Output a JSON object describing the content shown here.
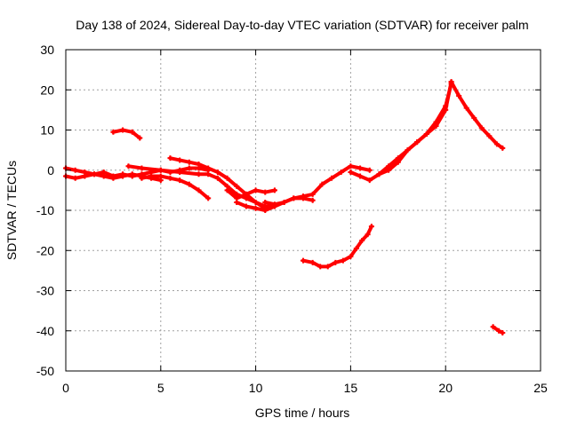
{
  "chart_data": {
    "type": "scatter",
    "title": "Day 138 of 2024, Sidereal Day-to-day VTEC variation (SDTVAR) for receiver palm",
    "xlabel": "GPS time / hours",
    "ylabel": "SDTVAR / TECUs",
    "xlim": [
      0,
      25
    ],
    "ylim": [
      -50,
      30
    ],
    "xticks": [
      0,
      5,
      10,
      15,
      20,
      25
    ],
    "yticks": [
      -50,
      -40,
      -30,
      -20,
      -10,
      0,
      10,
      20,
      30
    ],
    "grid": true,
    "series_color": "#ff0000",
    "series": [
      {
        "name": "arc-1",
        "x": [
          0,
          0.5,
          1,
          1.5,
          2,
          2.5,
          3,
          3.5,
          4,
          4.5,
          5,
          5.5,
          6,
          6.5,
          7,
          7.5
        ],
        "y": [
          -1.5,
          -2,
          -1.5,
          -1,
          -0.5,
          -1.5,
          -1,
          -1.5,
          -1,
          -0.5,
          0,
          -0.5,
          0,
          0.5,
          0.5,
          0
        ]
      },
      {
        "name": "arc-2",
        "x": [
          0,
          0.5,
          1,
          1.5,
          2,
          2.5,
          3,
          3.5,
          4,
          4.5,
          5
        ],
        "y": [
          0.5,
          0,
          -0.5,
          -1,
          -1.5,
          -2,
          -1.5,
          -1,
          -1.5,
          -2,
          -2.5
        ]
      },
      {
        "name": "arc-3",
        "x": [
          2.5,
          3,
          3.5,
          3.9
        ],
        "y": [
          9.5,
          10,
          9.5,
          8
        ]
      },
      {
        "name": "arc-4",
        "x": [
          3.3,
          4,
          5,
          6,
          7,
          7.5,
          8,
          8.5,
          9,
          9.5,
          10,
          10.5,
          11
        ],
        "y": [
          1,
          0.5,
          0,
          -0.5,
          -1,
          -1,
          -2,
          -4,
          -6,
          -7,
          -8,
          -9,
          -9
        ]
      },
      {
        "name": "arc-5",
        "x": [
          5.5,
          6,
          6.5,
          7,
          7.5,
          8,
          8.5,
          9,
          9.5,
          10,
          10.5
        ],
        "y": [
          3,
          2.5,
          2,
          1.5,
          0.5,
          -0.5,
          -2,
          -4,
          -6,
          -8,
          -9.5
        ]
      },
      {
        "name": "arc-6",
        "x": [
          4,
          4.5,
          5,
          5.5,
          6,
          6.5,
          7,
          7.5
        ],
        "y": [
          -2,
          -1.5,
          -1.5,
          -2,
          -2.5,
          -3.5,
          -5,
          -7
        ]
      },
      {
        "name": "arc-7",
        "x": [
          8.5,
          9,
          9.5,
          10,
          10.5,
          11
        ],
        "y": [
          -5,
          -7,
          -6,
          -5,
          -5.5,
          -5
        ]
      },
      {
        "name": "arc-8",
        "x": [
          9,
          9.5,
          10,
          10.5,
          11,
          11.5,
          12,
          12.5,
          13,
          13.5,
          14,
          14.5,
          15,
          15.5,
          16
        ],
        "y": [
          -8,
          -9,
          -9.5,
          -10,
          -9,
          -8,
          -7,
          -6.5,
          -6,
          -3.5,
          -2,
          -0.5,
          1,
          0.5,
          0
        ]
      },
      {
        "name": "arc-9",
        "x": [
          10.5,
          11,
          11.5,
          12,
          12.5,
          13
        ],
        "y": [
          -8,
          -8.5,
          -8,
          -7,
          -7,
          -7.5
        ]
      },
      {
        "name": "arc-10",
        "x": [
          12.5,
          13,
          13.4,
          13.8,
          14.2,
          14.6,
          15,
          15.3,
          15.6,
          15.9,
          16.1
        ],
        "y": [
          -22.5,
          -23,
          -24,
          -24,
          -23,
          -22.5,
          -21.5,
          -19.5,
          -17.5,
          -16,
          -14
        ]
      },
      {
        "name": "arc-11",
        "x": [
          15,
          15.5,
          16,
          16.5,
          17,
          17.5,
          18,
          18.5,
          19,
          19.5,
          20,
          20.3
        ],
        "y": [
          -0.5,
          -1.5,
          -2.5,
          -1,
          1,
          3,
          5,
          7,
          9,
          11,
          15,
          22
        ]
      },
      {
        "name": "arc-12",
        "x": [
          16.5,
          17,
          17.5,
          18,
          18.5,
          19,
          19.5,
          20,
          20.3
        ],
        "y": [
          -1,
          0,
          2,
          5,
          7,
          9,
          12,
          16,
          21.5
        ]
      },
      {
        "name": "arc-13",
        "x": [
          20.3,
          20.7,
          21.1,
          21.5,
          21.9,
          22.3,
          22.7,
          23
        ],
        "y": [
          22,
          18.5,
          15.5,
          13,
          10.5,
          8.5,
          6.5,
          5.5
        ]
      },
      {
        "name": "arc-14",
        "x": [
          22.5,
          22.8,
          23
        ],
        "y": [
          -39,
          -40,
          -40.5
        ]
      }
    ]
  }
}
